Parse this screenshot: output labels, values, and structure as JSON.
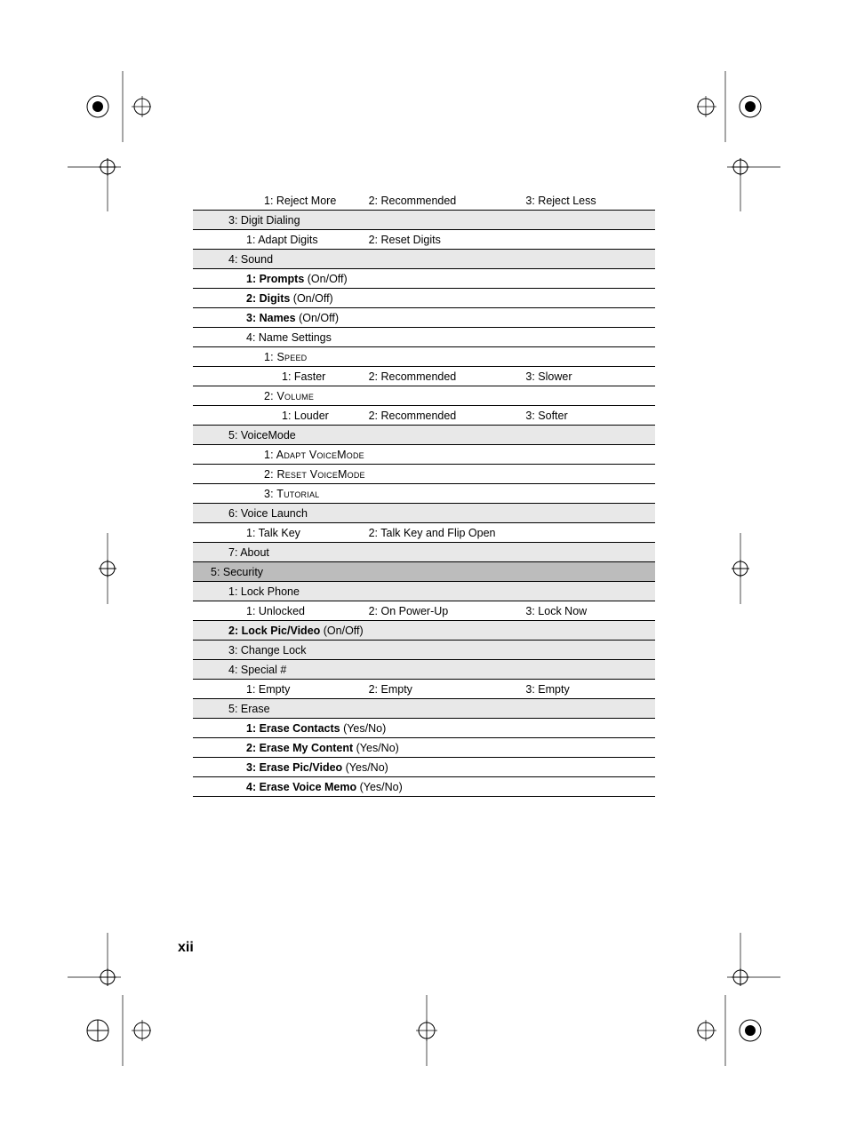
{
  "page_number": "xii",
  "colors": {
    "shade_light": "#e8e8e8",
    "shade_dark": "#bcbcbc",
    "rule": "#000000",
    "text": "#000000"
  },
  "rows": [
    {
      "cells": [
        "1: Reject More",
        "2: Recommended",
        "3: Reject Less"
      ],
      "indent": 3
    },
    {
      "text": "3: Digit Dialing",
      "shade": "light",
      "bold": true,
      "indent": 1
    },
    {
      "cells": [
        "1: Adapt Digits",
        "2: Reset Digits",
        ""
      ],
      "indent": 2
    },
    {
      "text": "4: Sound",
      "shade": "light",
      "bold": true,
      "indent": 1
    },
    {
      "text_bold": "1: Prompts",
      "text_plain": " (On/Off)",
      "indent": 2
    },
    {
      "text_bold": "2: Digits",
      "text_plain": " (On/Off)",
      "indent": 2
    },
    {
      "text_bold": "3: Names",
      "text_plain": " (On/Off)",
      "indent": 2
    },
    {
      "text": "4: Name Settings",
      "bold": true,
      "indent": 2
    },
    {
      "text": "1: Speed",
      "sc": true,
      "indent": 3
    },
    {
      "cells": [
        "1: Faster",
        "2: Recommended",
        "3: Slower"
      ],
      "indent": 4
    },
    {
      "text": "2: Volume",
      "sc": true,
      "indent": 3
    },
    {
      "cells": [
        "1: Louder",
        "2: Recommended",
        "3: Softer"
      ],
      "indent": 4
    },
    {
      "text": "5: VoiceMode",
      "shade": "light",
      "bold": true,
      "indent": 1
    },
    {
      "text": "1: Adapt VoiceMode",
      "sc": true,
      "indent": 3
    },
    {
      "text": "2: Reset VoiceMode",
      "sc": true,
      "indent": 3
    },
    {
      "text": "3: Tutorial",
      "sc": true,
      "indent": 3
    },
    {
      "text": "6: Voice Launch",
      "shade": "light",
      "bold": true,
      "indent": 1
    },
    {
      "cells": [
        "1: Talk Key",
        "2: Talk Key and Flip Open",
        ""
      ],
      "indent": 2
    },
    {
      "text": "7: About",
      "shade": "light",
      "bold": true,
      "indent": 1
    },
    {
      "text": "5: Security",
      "shade": "dark",
      "bold": true,
      "indent": 0
    },
    {
      "text": "1: Lock Phone",
      "shade": "light",
      "bold": true,
      "indent": 1
    },
    {
      "cells": [
        "1: Unlocked",
        "2: On Power-Up",
        "3: Lock Now"
      ],
      "indent": 2
    },
    {
      "text_bold": "2: Lock Pic/Video",
      "text_plain": " (On/Off)",
      "shade": "light",
      "indent": 1
    },
    {
      "text": "3: Change Lock",
      "shade": "light",
      "bold": true,
      "indent": 1
    },
    {
      "text": "4: Special #",
      "shade": "light",
      "bold": true,
      "indent": 1
    },
    {
      "cells": [
        "1: Empty",
        "2: Empty",
        "3: Empty"
      ],
      "indent": 2
    },
    {
      "text": "5: Erase",
      "shade": "light",
      "bold": true,
      "indent": 1
    },
    {
      "text_bold": "1: Erase Contacts",
      "text_plain": " (Yes/No)",
      "indent": 2
    },
    {
      "text_bold": "2: Erase My Content",
      "text_plain": " (Yes/No)",
      "indent": 2
    },
    {
      "text_bold": "3: Erase Pic/Video",
      "text_plain": " (Yes/No)",
      "indent": 2
    },
    {
      "text_bold": "4: Erase Voice Memo",
      "text_plain": " (Yes/No)",
      "indent": 2
    }
  ]
}
